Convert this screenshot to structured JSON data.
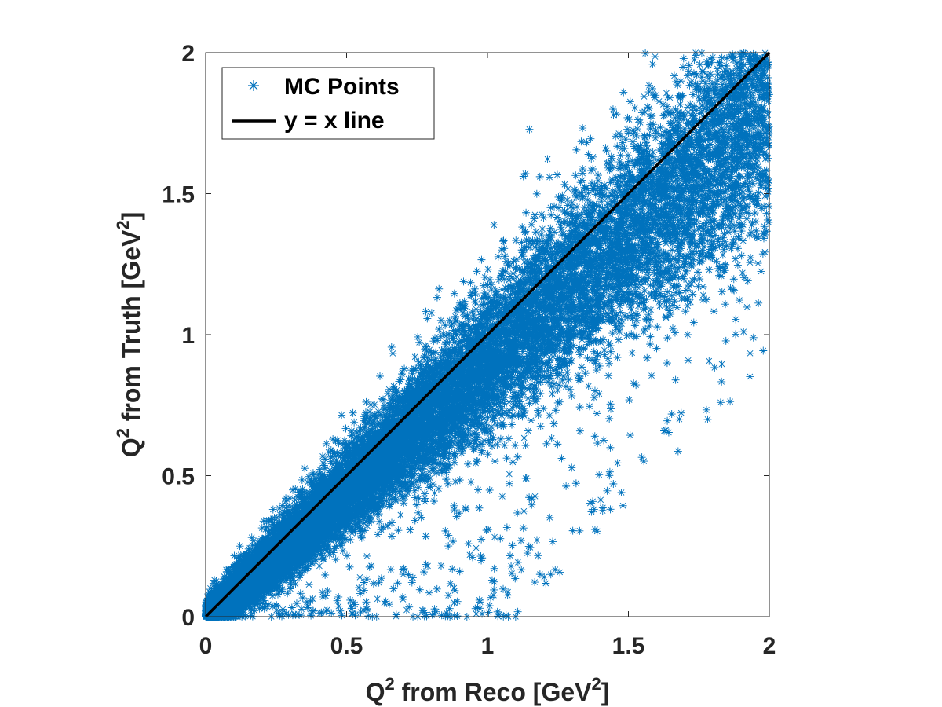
{
  "chart_data": {
    "type": "scatter",
    "xlabel": {
      "prefix": "Q",
      "sup1": "2",
      "mid": " from Reco [GeV",
      "sup2": "2",
      "suffix": "]"
    },
    "ylabel": {
      "prefix": "Q",
      "sup1": "2",
      "mid": " from Truth [GeV",
      "sup2": "2",
      "suffix": "]"
    },
    "xlim": [
      0,
      2
    ],
    "ylim": [
      0,
      2
    ],
    "x_ticks": [
      "0",
      "0.5",
      "1",
      "1.5",
      "2"
    ],
    "y_ticks": [
      "0",
      "0.5",
      "1",
      "1.5",
      "2"
    ],
    "tick_values": [
      0,
      0.5,
      1,
      1.5,
      2
    ],
    "grid": false,
    "legend_position": "top-left",
    "series": [
      {
        "name": "MC Points",
        "marker": "asterisk",
        "color": "#0072BD",
        "description_values": {
          "approx_point_count": 20000,
          "density_concentration": "near y = x from 0 to 1",
          "spread": "widening with Q2; points above 1 spread mostly below the line"
        }
      },
      {
        "name": "y = x line",
        "type": "line",
        "color": "#000000",
        "x": [
          0,
          2
        ],
        "y": [
          0,
          2
        ]
      }
    ]
  }
}
